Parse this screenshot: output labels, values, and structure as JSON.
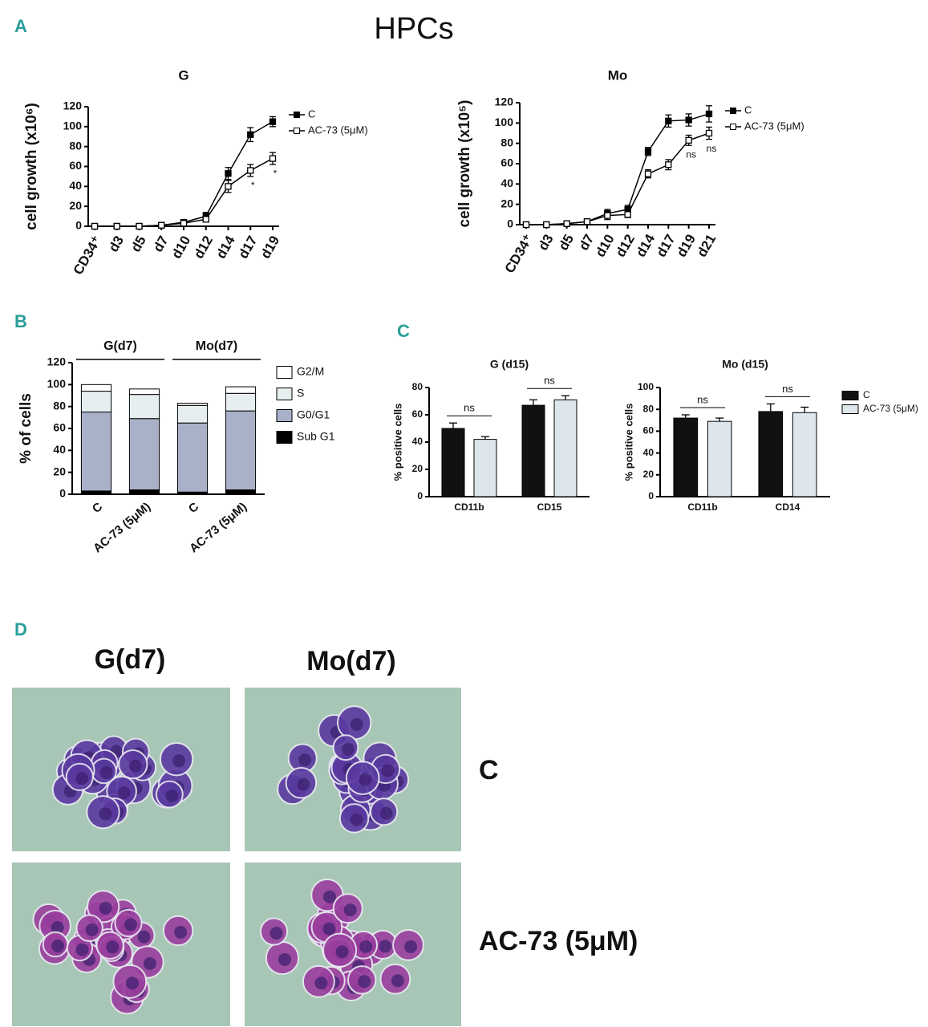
{
  "figure": {
    "panels": [
      "A",
      "B",
      "C",
      "D"
    ],
    "title": "HPCs"
  },
  "chart_data": [
    {
      "type": "line",
      "title": "G",
      "y_label": "cell growth (x10⁶)",
      "categories": [
        "CD34⁺",
        "d3",
        "d5",
        "d7",
        "d10",
        "d12",
        "d14",
        "d17",
        "d19"
      ],
      "series": [
        {
          "name": "C",
          "color": "#000000",
          "marker_fill": "#000000",
          "values": [
            0,
            0,
            0,
            1,
            4,
            10,
            53,
            92,
            105
          ],
          "errors": [
            1,
            1,
            1,
            1,
            2,
            4,
            6,
            7,
            5
          ]
        },
        {
          "name": "AC-73 (5μM)",
          "color": "#000000",
          "marker_fill": "#ffffff",
          "values": [
            0,
            0,
            0,
            1,
            3,
            7,
            40,
            56,
            68
          ],
          "errors": [
            1,
            1,
            1,
            1,
            1,
            2,
            6,
            6,
            6
          ],
          "point_labels": [
            null,
            null,
            null,
            null,
            null,
            null,
            null,
            "*",
            "*"
          ]
        }
      ],
      "ylim": [
        0,
        120
      ],
      "yticks": [
        0,
        20,
        40,
        60,
        80,
        100,
        120
      ],
      "legend": "right"
    },
    {
      "type": "line",
      "title": "Mo",
      "y_label": "cell growth (x10⁵)",
      "categories": [
        "CD34⁺",
        "d3",
        "d5",
        "d7",
        "d10",
        "d12",
        "d14",
        "d17",
        "d19",
        "d21"
      ],
      "series": [
        {
          "name": "C",
          "color": "#000000",
          "marker_fill": "#000000",
          "values": [
            0,
            0,
            1,
            3,
            11,
            15,
            72,
            102,
            103,
            109
          ],
          "errors": [
            1,
            1,
            1,
            1,
            4,
            4,
            4,
            6,
            6,
            8
          ]
        },
        {
          "name": "AC-73 (5μM)",
          "color": "#000000",
          "marker_fill": "#ffffff",
          "values": [
            0,
            0,
            1,
            3,
            9,
            10,
            50,
            59,
            83,
            90
          ],
          "errors": [
            1,
            1,
            1,
            1,
            4,
            3,
            4,
            5,
            5,
            6
          ],
          "point_labels": [
            null,
            null,
            null,
            null,
            null,
            null,
            null,
            null,
            "ns",
            "ns"
          ]
        }
      ],
      "ylim": [
        0,
        120
      ],
      "yticks": [
        0,
        20,
        40,
        60,
        80,
        100,
        120
      ],
      "legend": "right"
    },
    {
      "type": "bar",
      "stacked": true,
      "y_label": "% of cells",
      "categories": [
        "C",
        "AC-73 (5μM)",
        "C",
        "AC-73 (5μM)"
      ],
      "groups": [
        "G(d7)",
        "Mo(d7)"
      ],
      "series": [
        {
          "name": "Sub G1",
          "color": "#000000",
          "values": [
            3,
            4,
            2,
            4
          ]
        },
        {
          "name": "G0/G1",
          "color": "#a9b1c9",
          "values": [
            72,
            65,
            63,
            72
          ]
        },
        {
          "name": "S",
          "color": "#e6eef0",
          "values": [
            19,
            22,
            16,
            16
          ]
        },
        {
          "name": "G2/M",
          "color": "#ffffff",
          "values": [
            6,
            5,
            2,
            6
          ]
        }
      ],
      "ylim": [
        0,
        120
      ],
      "yticks": [
        0,
        20,
        40,
        60,
        80,
        100,
        120
      ],
      "legend": "right"
    },
    {
      "type": "bar",
      "title": "G (d15)",
      "y_label": "% positive cells",
      "categories": [
        "CD11b",
        "CD15"
      ],
      "category_annotations": [
        "ns",
        "ns"
      ],
      "series": [
        {
          "name": "C",
          "color": "#111111",
          "values": [
            50,
            67
          ],
          "errors": [
            4,
            4
          ]
        },
        {
          "name": "AC-73 (5μM)",
          "color": "#dde6ea",
          "values": [
            42,
            71
          ],
          "errors": [
            2,
            3
          ]
        }
      ],
      "ylim": [
        0,
        80
      ],
      "yticks": [
        0,
        20,
        40,
        60,
        80
      ],
      "legend": "none"
    },
    {
      "type": "bar",
      "title": "Mo (d15)",
      "y_label": "% positive cells",
      "categories": [
        "CD11b",
        "CD14"
      ],
      "category_annotations": [
        "ns",
        "ns"
      ],
      "series": [
        {
          "name": "C",
          "color": "#111111",
          "values": [
            72,
            78
          ],
          "errors": [
            3,
            7
          ]
        },
        {
          "name": "AC-73 (5μM)",
          "color": "#dde6ea",
          "values": [
            69,
            77
          ],
          "errors": [
            3,
            5
          ]
        }
      ],
      "ylim": [
        0,
        100
      ],
      "yticks": [
        0,
        20,
        40,
        60,
        80,
        100
      ],
      "legend": "right"
    }
  ],
  "micrographs": {
    "columns": [
      "G(d7)",
      "Mo(d7)"
    ],
    "rows": [
      "C",
      "AC-73 (5μM)"
    ]
  }
}
